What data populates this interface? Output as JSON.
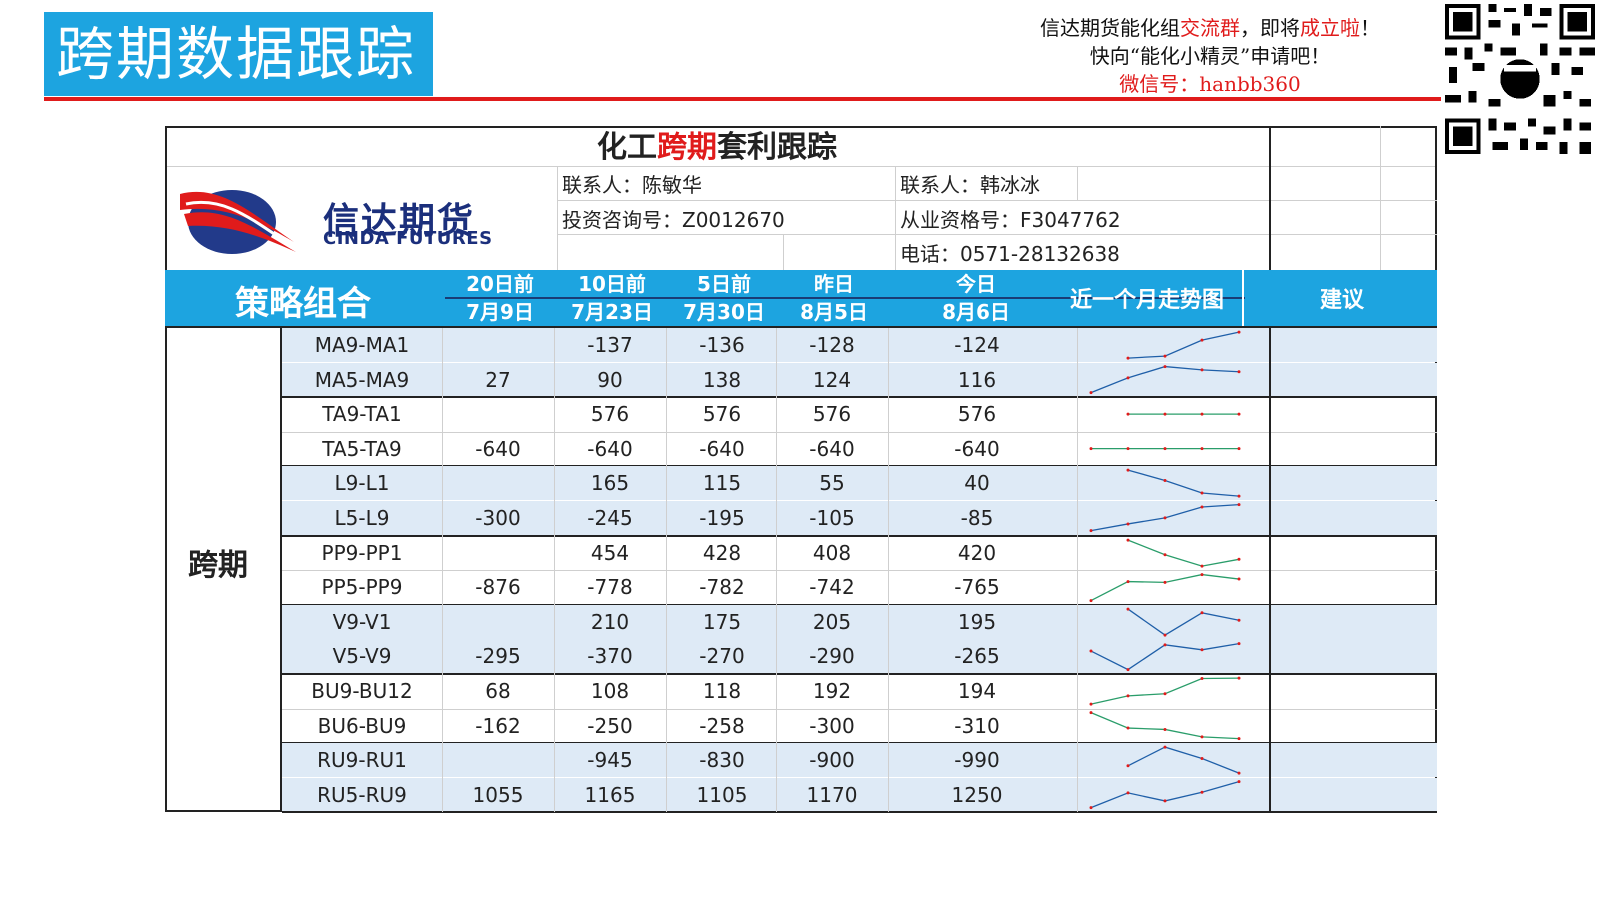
{
  "banner": {
    "title": "跨期数据跟踪"
  },
  "promo": {
    "line1_a": "信达期货能化组",
    "line1_b": "交流群",
    "line1_c": "，即将",
    "line1_d": "成立啦",
    "line1_e": "！",
    "line2": "快向“能化小精灵”申请吧！",
    "line3": "微信号：hanbb360"
  },
  "sheet": {
    "title_a": "化工",
    "title_b": "跨期",
    "title_c": "套利跟踪",
    "logo_cn": "信达期货",
    "logo_en": "CINDA FUTURES",
    "contact1": "联系人：陈敏华",
    "license1": "投资咨询号：Z0012670",
    "contact2": "联系人：韩冰冰",
    "license2": "从业资格号：F3047762",
    "phone": "电话：0571-28132638"
  },
  "header": {
    "strategy": "策略组合",
    "cols": [
      {
        "top": "20日前",
        "bottom": "7月9日"
      },
      {
        "top": "10日前",
        "bottom": "7月23日"
      },
      {
        "top": "5日前",
        "bottom": "7月30日"
      },
      {
        "top": "昨日",
        "bottom": "8月5日"
      },
      {
        "top": "今日",
        "bottom": "8月6日"
      }
    ],
    "trend": "近一个月走势图",
    "advice": "建议"
  },
  "group_label": "跨期",
  "rows": [
    {
      "name": "MA9-MA1",
      "d20": "",
      "d10": "-137",
      "d5": "-136",
      "yd": "-128",
      "td": "-124",
      "series": [
        null,
        -137,
        -136,
        -128,
        -124
      ],
      "color": "#1f5fa8"
    },
    {
      "name": "MA5-MA9",
      "d20": "27",
      "d10": "90",
      "d5": "138",
      "yd": "124",
      "td": "116",
      "series": [
        27,
        90,
        138,
        124,
        116
      ],
      "color": "#1f5fa8"
    },
    {
      "name": "TA9-TA1",
      "d20": "",
      "d10": "576",
      "d5": "576",
      "yd": "576",
      "td": "576",
      "series": [
        null,
        576,
        576,
        576,
        576
      ],
      "color": "#2a9d6a"
    },
    {
      "name": "TA5-TA9",
      "d20": "-640",
      "d10": "-640",
      "d5": "-640",
      "yd": "-640",
      "td": "-640",
      "series": [
        -640,
        -640,
        -640,
        -640,
        -640
      ],
      "color": "#2a9d6a"
    },
    {
      "name": "L9-L1",
      "d20": "",
      "d10": "165",
      "d5": "115",
      "yd": "55",
      "td": "40",
      "series": [
        null,
        165,
        115,
        55,
        40
      ],
      "color": "#1f5fa8"
    },
    {
      "name": "L5-L9",
      "d20": "-300",
      "d10": "-245",
      "d5": "-195",
      "yd": "-105",
      "td": "-85",
      "series": [
        -300,
        -245,
        -195,
        -105,
        -85
      ],
      "color": "#1f5fa8"
    },
    {
      "name": "PP9-PP1",
      "d20": "",
      "d10": "454",
      "d5": "428",
      "yd": "408",
      "td": "420",
      "series": [
        null,
        454,
        428,
        408,
        420
      ],
      "color": "#2a9d6a"
    },
    {
      "name": "PP5-PP9",
      "d20": "-876",
      "d10": "-778",
      "d5": "-782",
      "yd": "-742",
      "td": "-765",
      "series": [
        -876,
        -778,
        -782,
        -742,
        -765
      ],
      "color": "#2a9d6a"
    },
    {
      "name": "V9-V1",
      "d20": "",
      "d10": "210",
      "d5": "175",
      "yd": "205",
      "td": "195",
      "series": [
        null,
        210,
        175,
        205,
        195
      ],
      "color": "#1f5fa8"
    },
    {
      "name": "V5-V9",
      "d20": "-295",
      "d10": "-370",
      "d5": "-270",
      "yd": "-290",
      "td": "-265",
      "series": [
        -295,
        -370,
        -270,
        -290,
        -265
      ],
      "color": "#1f5fa8"
    },
    {
      "name": "BU9-BU12",
      "d20": "68",
      "d10": "108",
      "d5": "118",
      "yd": "192",
      "td": "194",
      "series": [
        68,
        108,
        118,
        192,
        194
      ],
      "color": "#2a9d6a"
    },
    {
      "name": "BU6-BU9",
      "d20": "-162",
      "d10": "-250",
      "d5": "-258",
      "yd": "-300",
      "td": "-310",
      "series": [
        -162,
        -250,
        -258,
        -300,
        -310
      ],
      "color": "#2a9d6a"
    },
    {
      "name": "RU9-RU1",
      "d20": "",
      "d10": "-945",
      "d5": "-830",
      "yd": "-900",
      "td": "-990",
      "series": [
        null,
        -945,
        -830,
        -900,
        -990
      ],
      "color": "#1f5fa8"
    },
    {
      "name": "RU5-RU9",
      "d20": "1055",
      "d10": "1165",
      "d5": "1105",
      "yd": "1170",
      "td": "1250",
      "series": [
        1055,
        1165,
        1105,
        1170,
        1250
      ],
      "color": "#1f5fa8"
    }
  ]
}
